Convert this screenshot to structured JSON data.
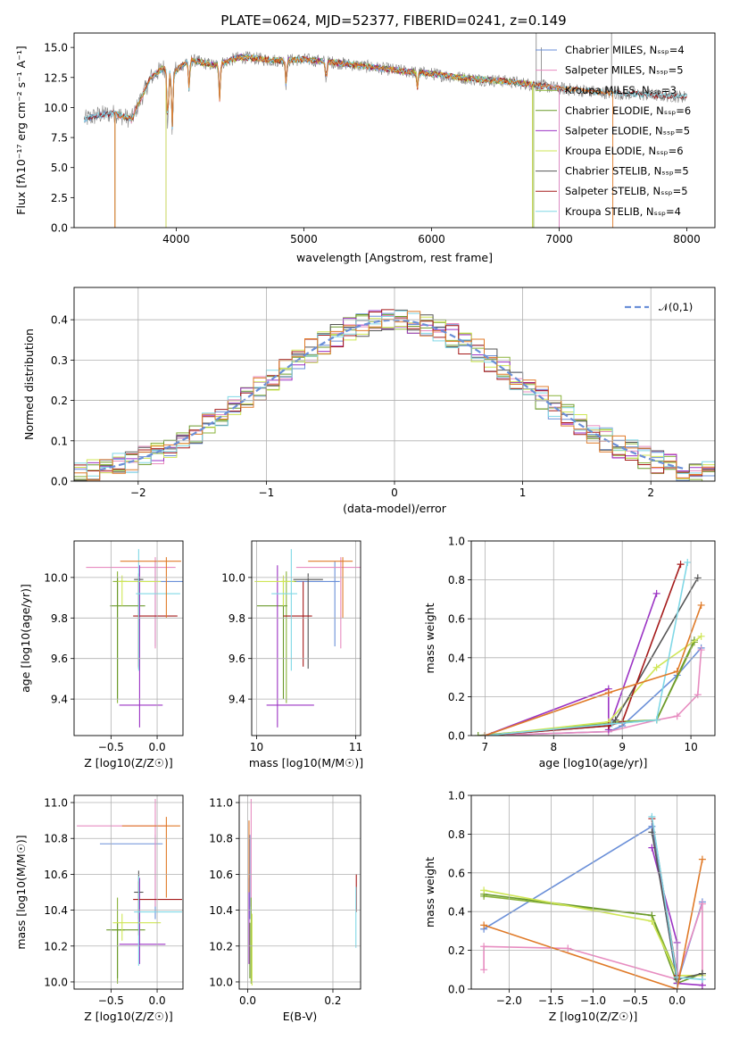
{
  "figure": {
    "colors": {
      "chabrier_miles": "#6a8fd8",
      "salpeter_miles": "#e78cc0",
      "kroupa_miles": "#8ab33a",
      "chabrier_elodie": "#6b9a2b",
      "salpeter_elodie": "#9b33c4",
      "kroupa_elodie": "#cfe655",
      "chabrier_stelib": "#555555",
      "salpeter_stelib": "#a51a1a",
      "kroupa_stelib": "#80d8e6",
      "orange": "#e07a28",
      "data": "#7f7f7f"
    }
  },
  "chart_data": [
    {
      "id": "spectrum",
      "type": "line",
      "title": "PLATE=0624, MJD=52377, FIBERID=0241, z=0.149",
      "xlabel": "wavelength [Angstrom, rest frame]",
      "ylabel": "Flux [f_λ 10^-17 erg cm^-2 s^-1 A^-1]",
      "xlim": [
        3200,
        8220
      ],
      "ylim": [
        0,
        16.2
      ],
      "xticks": [
        4000,
        5000,
        6000,
        7000,
        8000
      ],
      "yticks": [
        "0.0",
        "2.5",
        "5.0",
        "7.5",
        "10.0",
        "12.5",
        "15.0"
      ],
      "legend_position": "top-right",
      "legend": [
        "Chabrier MILES, N_SSP=4",
        "Salpeter MILES, N_SSP=5",
        "Kroupa MILES, N_SSP=3",
        "Chabrier ELODIE, N_SSP=6",
        "Salpeter ELODIE, N_SSP=5",
        "Kroupa ELODIE, N_SSP=6",
        "Chabrier STELIB, N_SSP=5",
        "Salpeter STELIB, N_SSP=5",
        "Kroupa STELIB, N_SSP=4"
      ],
      "observed_spectrum": {
        "x": [
          3280,
          3400,
          3520,
          3650,
          3800,
          3900,
          3970,
          4100,
          4300,
          4500,
          4800,
          5000,
          5200,
          5500,
          5800,
          6000,
          6300,
          6560,
          6800,
          7000,
          7400,
          7800,
          8000
        ],
        "y": [
          9.0,
          9.4,
          9.5,
          9.0,
          12.5,
          13.3,
          12.8,
          14.0,
          13.5,
          14.2,
          13.9,
          14.0,
          13.8,
          13.4,
          13.0,
          12.8,
          12.4,
          12.2,
          11.9,
          11.6,
          11.2,
          11.0,
          10.9
        ]
      },
      "model_cutoffs_angstrom": [
        3520,
        3520,
        3920,
        3920,
        3920,
        6790,
        7420,
        7420,
        6800
      ]
    },
    {
      "id": "residuals",
      "type": "line",
      "xlabel": "(data-model)/error",
      "ylabel": "Normed distribution",
      "xlim": [
        -2.5,
        2.5
      ],
      "ylim": [
        0,
        0.48
      ],
      "xticks": [
        -2,
        -1,
        0,
        1,
        2
      ],
      "yticks": [
        "0.0",
        "0.1",
        "0.2",
        "0.3",
        "0.4"
      ],
      "legend_position": "top-right",
      "legend": [
        "𝒩(0,1)"
      ],
      "gaussian": {
        "mean": 0,
        "sigma": 1
      }
    },
    {
      "id": "age-vs-Z",
      "type": "scatter",
      "xlabel": "Z [log10(Z/Z☉)]",
      "ylabel": "age  [log10(age/yr)]",
      "xlim": [
        -0.9,
        0.28
      ],
      "ylim": [
        9.22,
        10.18
      ],
      "xticks": [
        "−0.5",
        "0.0"
      ],
      "yticks": [
        "9.4",
        "9.6",
        "9.8",
        "10.0"
      ],
      "points": [
        {
          "c": "chabrier_miles",
          "x": -0.02,
          "y": 9.98,
          "xerr": [
            0.38,
            0.32
          ],
          "yerr": [
            0.32,
            0.1
          ]
        },
        {
          "c": "salpeter_miles",
          "x": -0.02,
          "y": 10.05,
          "xerr": [
            0.75,
            0.22
          ],
          "yerr": [
            0.4,
            0.05
          ]
        },
        {
          "c": "kroupa_miles",
          "x": -0.43,
          "y": 9.98,
          "xerr": [
            0.05,
            0.1
          ],
          "yerr": [
            0.6,
            0.05
          ]
        },
        {
          "c": "chabrier_elodie",
          "x": -0.43,
          "y": 9.86,
          "xerr": [
            0.08,
            0.3
          ],
          "yerr": [
            0.46,
            0.14
          ]
        },
        {
          "c": "salpeter_elodie",
          "x": -0.19,
          "y": 9.37,
          "xerr": [
            0.22,
            0.25
          ],
          "yerr": [
            0.11,
            0.69
          ]
        },
        {
          "c": "kroupa_elodie",
          "x": -0.38,
          "y": 9.98,
          "xerr": [
            0.05,
            0.42
          ],
          "yerr": [
            0.12,
            0.03
          ]
        },
        {
          "c": "chabrier_stelib",
          "x": -0.2,
          "y": 9.99,
          "xerr": [
            0.05,
            0.05
          ],
          "yerr": [
            0.44,
            0.03
          ]
        },
        {
          "c": "salpeter_stelib",
          "x": -0.2,
          "y": 9.81,
          "xerr": [
            0.06,
            0.42
          ],
          "yerr": [
            0.25,
            0.17
          ]
        },
        {
          "c": "kroupa_stelib",
          "x": -0.2,
          "y": 9.92,
          "xerr": [
            0.03,
            0.45
          ],
          "yerr": [
            0.38,
            0.22
          ]
        },
        {
          "c": "orange",
          "x": 0.1,
          "y": 10.08,
          "xerr": [
            0.5,
            0.16
          ],
          "yerr": [
            0.28,
            0.02
          ]
        }
      ]
    },
    {
      "id": "age-vs-mass",
      "type": "scatter",
      "xlabel": "mass [log10(M/M☉)]",
      "ylabel": "",
      "xlim": [
        9.95,
        11.05
      ],
      "ylim": [
        9.22,
        10.18
      ],
      "xticks": [
        "10",
        "11"
      ],
      "yticks": [
        "9.4",
        "9.6",
        "9.8",
        "10.0"
      ],
      "points": [
        {
          "c": "chabrier_miles",
          "x": 10.79,
          "y": 9.98,
          "xerr": [
            0.42,
            0.05
          ],
          "yerr": [
            0.32,
            0.1
          ]
        },
        {
          "c": "salpeter_miles",
          "x": 10.85,
          "y": 10.05,
          "xerr": [
            0.45,
            0.2
          ],
          "yerr": [
            0.4,
            0.05
          ]
        },
        {
          "c": "kroupa_miles",
          "x": 10.3,
          "y": 9.98,
          "xerr": [
            0.05,
            0.1
          ],
          "yerr": [
            0.6,
            0.05
          ]
        },
        {
          "c": "chabrier_elodie",
          "x": 10.27,
          "y": 9.86,
          "xerr": [
            0.27,
            0.04
          ],
          "yerr": [
            0.46,
            0.14
          ]
        },
        {
          "c": "salpeter_elodie",
          "x": 10.21,
          "y": 9.37,
          "xerr": [
            0.11,
            0.37
          ],
          "yerr": [
            0.11,
            0.69
          ]
        },
        {
          "c": "kroupa_elodie",
          "x": 10.27,
          "y": 9.98,
          "xerr": [
            0.29,
            0.11
          ],
          "yerr": [
            0.12,
            0.03
          ]
        },
        {
          "c": "chabrier_stelib",
          "x": 10.52,
          "y": 9.99,
          "xerr": [
            0.15,
            0.15
          ],
          "yerr": [
            0.44,
            0.03
          ]
        },
        {
          "c": "salpeter_stelib",
          "x": 10.47,
          "y": 9.81,
          "xerr": [
            0.2,
            0.09
          ],
          "yerr": [
            0.25,
            0.17
          ]
        },
        {
          "c": "kroupa_stelib",
          "x": 10.35,
          "y": 9.92,
          "xerr": [
            0.2,
            0.06
          ],
          "yerr": [
            0.38,
            0.22
          ]
        },
        {
          "c": "orange",
          "x": 10.87,
          "y": 10.08,
          "xerr": [
            0.35,
            0.1
          ],
          "yerr": [
            0.28,
            0.02
          ]
        }
      ]
    },
    {
      "id": "mass-weight-vs-age",
      "type": "line",
      "xlabel": "age  [log10(age/yr)]",
      "ylabel": "mass weight",
      "xlim": [
        6.8,
        10.35
      ],
      "ylim": [
        0,
        1
      ],
      "xticks": [
        "7",
        "8",
        "9",
        "10"
      ],
      "yticks": [
        "0.0",
        "0.2",
        "0.4",
        "0.6",
        "0.8",
        "1.0"
      ],
      "series": [
        {
          "c": "chabrier_miles",
          "x": [
            7.0,
            8.8,
            9.0,
            9.8,
            10.15
          ],
          "y": [
            0.0,
            0.02,
            0.05,
            0.31,
            0.45
          ]
        },
        {
          "c": "salpeter_miles",
          "x": [
            7.0,
            8.8,
            9.5,
            9.8,
            10.1,
            10.15
          ],
          "y": [
            0.0,
            0.02,
            0.08,
            0.1,
            0.21,
            0.44
          ]
        },
        {
          "c": "kroupa_miles",
          "x": [
            7.1,
            8.85,
            9.5,
            10.05
          ],
          "y": [
            0.0,
            0.07,
            0.08,
            0.48
          ]
        },
        {
          "c": "chabrier_elodie",
          "x": [
            6.9,
            8.8,
            9.5,
            10.05
          ],
          "y": [
            0.0,
            0.06,
            0.08,
            0.49
          ]
        },
        {
          "c": "salpeter_elodie",
          "x": [
            7.0,
            8.8,
            8.8,
            9.5
          ],
          "y": [
            0.0,
            0.24,
            0.03,
            0.73
          ]
        },
        {
          "c": "kroupa_elodie",
          "x": [
            7.0,
            8.8,
            9.5,
            10.15
          ],
          "y": [
            0.0,
            0.07,
            0.35,
            0.51
          ]
        },
        {
          "c": "chabrier_stelib",
          "x": [
            7.0,
            8.8,
            8.9,
            10.1
          ],
          "y": [
            0.0,
            0.05,
            0.08,
            0.81
          ]
        },
        {
          "c": "salpeter_stelib",
          "x": [
            7.0,
            8.8,
            9.0,
            9.85
          ],
          "y": [
            0.0,
            0.05,
            0.07,
            0.88
          ]
        },
        {
          "c": "kroupa_stelib",
          "x": [
            7.0,
            8.85,
            9.5,
            9.95
          ],
          "y": [
            0.0,
            0.06,
            0.08,
            0.89
          ]
        },
        {
          "c": "orange",
          "x": [
            7.0,
            8.8,
            9.8,
            10.15
          ],
          "y": [
            0.0,
            0.22,
            0.33,
            0.67
          ]
        }
      ]
    },
    {
      "id": "mass-vs-Z",
      "type": "scatter",
      "xlabel": "Z [log10(Z/Z☉)]",
      "ylabel": "mass [log10(M/M☉)]",
      "xlim": [
        -0.9,
        0.28
      ],
      "ylim": [
        9.96,
        11.04
      ],
      "xticks": [
        "−0.5",
        "0.0"
      ],
      "yticks": [
        "10.0",
        "10.2",
        "10.4",
        "10.6",
        "10.8",
        "11.0"
      ],
      "points": [
        {
          "c": "chabrier_miles",
          "x": -0.02,
          "y": 10.77,
          "xerr": [
            0.6,
            0.08
          ],
          "yerr": [
            0.42,
            0.05
          ]
        },
        {
          "c": "salpeter_miles",
          "x": -0.02,
          "y": 10.87,
          "xerr": [
            0.85,
            0.12
          ],
          "yerr": [
            0.45,
            0.15
          ]
        },
        {
          "c": "kroupa_miles",
          "x": -0.43,
          "y": 10.29,
          "xerr": [
            0.06,
            0.08
          ],
          "yerr": [
            0.3,
            0.18
          ]
        },
        {
          "c": "chabrier_elodie",
          "x": -0.43,
          "y": 10.29,
          "xerr": [
            0.12,
            0.3
          ],
          "yerr": [
            0.27,
            0.04
          ]
        },
        {
          "c": "salpeter_elodie",
          "x": -0.19,
          "y": 10.21,
          "xerr": [
            0.22,
            0.28
          ],
          "yerr": [
            0.11,
            0.37
          ]
        },
        {
          "c": "kroupa_elodie",
          "x": -0.38,
          "y": 10.33,
          "xerr": [
            0.1,
            0.42
          ],
          "yerr": [
            0.1,
            0.05
          ]
        },
        {
          "c": "chabrier_stelib",
          "x": -0.2,
          "y": 10.5,
          "xerr": [
            0.05,
            0.05
          ],
          "yerr": [
            0.15,
            0.12
          ]
        },
        {
          "c": "salpeter_stelib",
          "x": -0.2,
          "y": 10.46,
          "xerr": [
            0.06,
            0.47
          ],
          "yerr": [
            0.2,
            0.1
          ]
        },
        {
          "c": "kroupa_stelib",
          "x": -0.2,
          "y": 10.39,
          "xerr": [
            0.05,
            0.47
          ],
          "yerr": [
            0.3,
            0.2
          ]
        },
        {
          "c": "orange",
          "x": 0.1,
          "y": 10.87,
          "xerr": [
            0.48,
            0.15
          ],
          "yerr": [
            0.4,
            0.05
          ]
        }
      ]
    },
    {
      "id": "mass-vs-ebv",
      "type": "scatter",
      "xlabel": "E(B-V)",
      "ylabel": "",
      "xlim": [
        -0.02,
        0.265
      ],
      "ylim": [
        9.96,
        11.04
      ],
      "xticks": [
        "0.0",
        "0.2"
      ],
      "yticks": [
        "10.0",
        "10.2",
        "10.4",
        "10.6",
        "10.8",
        "11.0"
      ],
      "points": [
        {
          "c": "chabrier_miles",
          "x": 0.005,
          "y": 10.77,
          "xerr": [
            0.0,
            0.0
          ],
          "yerr": [
            0.42,
            0.05
          ]
        },
        {
          "c": "salpeter_miles",
          "x": 0.008,
          "y": 10.87,
          "xerr": [
            0.0,
            0.0
          ],
          "yerr": [
            0.45,
            0.15
          ]
        },
        {
          "c": "kroupa_miles",
          "x": 0.008,
          "y": 10.29,
          "xerr": [
            0.0,
            0.0
          ],
          "yerr": [
            0.3,
            0.18
          ]
        },
        {
          "c": "chabrier_elodie",
          "x": 0.005,
          "y": 10.29,
          "xerr": [
            0.0,
            0.0
          ],
          "yerr": [
            0.27,
            0.04
          ]
        },
        {
          "c": "salpeter_elodie",
          "x": 0.003,
          "y": 10.21,
          "xerr": [
            0.0,
            0.0
          ],
          "yerr": [
            0.11,
            0.37
          ]
        },
        {
          "c": "kroupa_elodie",
          "x": 0.01,
          "y": 10.33,
          "xerr": [
            0.0,
            0.0
          ],
          "yerr": [
            0.35,
            0.05
          ]
        },
        {
          "c": "salpeter_stelib",
          "x": 0.255,
          "y": 10.46,
          "xerr": [
            0.0,
            0.0
          ],
          "yerr": [
            0.07,
            0.14
          ]
        },
        {
          "c": "kroupa_stelib",
          "x": 0.254,
          "y": 10.39,
          "xerr": [
            0.0,
            0.0
          ],
          "yerr": [
            0.2,
            0.14
          ]
        },
        {
          "c": "orange",
          "x": 0.003,
          "y": 10.6,
          "xerr": [
            0.0,
            0.0
          ],
          "yerr": [
            0.1,
            0.3
          ]
        }
      ]
    },
    {
      "id": "mass-weight-vs-Z",
      "type": "line",
      "xlabel": "Z [log10(Z/Z☉)]",
      "ylabel": "mass weight",
      "xlim": [
        -2.45,
        0.45
      ],
      "ylim": [
        0,
        1
      ],
      "xticks": [
        "−2.0",
        "−1.5",
        "−1.0",
        "−0.5",
        "0.0"
      ],
      "yticks": [
        "0.0",
        "0.2",
        "0.4",
        "0.6",
        "0.8",
        "1.0"
      ],
      "series": [
        {
          "c": "chabrier_miles",
          "x": [
            -2.3,
            -0.3,
            0.0,
            0.3
          ],
          "y": [
            0.31,
            0.84,
            0.03,
            0.45
          ]
        },
        {
          "c": "salpeter_miles",
          "x": [
            -2.3,
            -2.3,
            -1.3,
            0.0,
            0.3,
            0.3
          ],
          "y": [
            0.1,
            0.22,
            0.21,
            0.05,
            0.44,
            0.02
          ]
        },
        {
          "c": "kroupa_miles",
          "x": [
            -2.3,
            -0.3,
            0.0
          ],
          "y": [
            0.48,
            0.38,
            0.07
          ]
        },
        {
          "c": "chabrier_elodie",
          "x": [
            -2.3,
            -0.3,
            0.0,
            0.3
          ],
          "y": [
            0.49,
            0.38,
            0.03,
            0.08
          ]
        },
        {
          "c": "salpeter_elodie",
          "x": [
            -0.3,
            0.0,
            0.0,
            0.3
          ],
          "y": [
            0.73,
            0.24,
            0.03,
            0.02
          ]
        },
        {
          "c": "kroupa_elodie",
          "x": [
            -2.3,
            -0.3,
            0.0,
            0.3
          ],
          "y": [
            0.51,
            0.35,
            0.07,
            0.07
          ]
        },
        {
          "c": "chabrier_stelib",
          "x": [
            -0.3,
            0.0,
            0.3
          ],
          "y": [
            0.81,
            0.05,
            0.08
          ]
        },
        {
          "c": "salpeter_stelib",
          "x": [
            -0.3,
            0.0
          ],
          "y": [
            0.88,
            0.07
          ]
        },
        {
          "c": "kroupa_stelib",
          "x": [
            -0.3,
            0.0,
            0.3
          ],
          "y": [
            0.89,
            0.06,
            0.05
          ]
        },
        {
          "c": "orange",
          "x": [
            -2.3,
            0.0,
            0.3
          ],
          "y": [
            0.33,
            0.0,
            0.67
          ]
        }
      ]
    }
  ]
}
